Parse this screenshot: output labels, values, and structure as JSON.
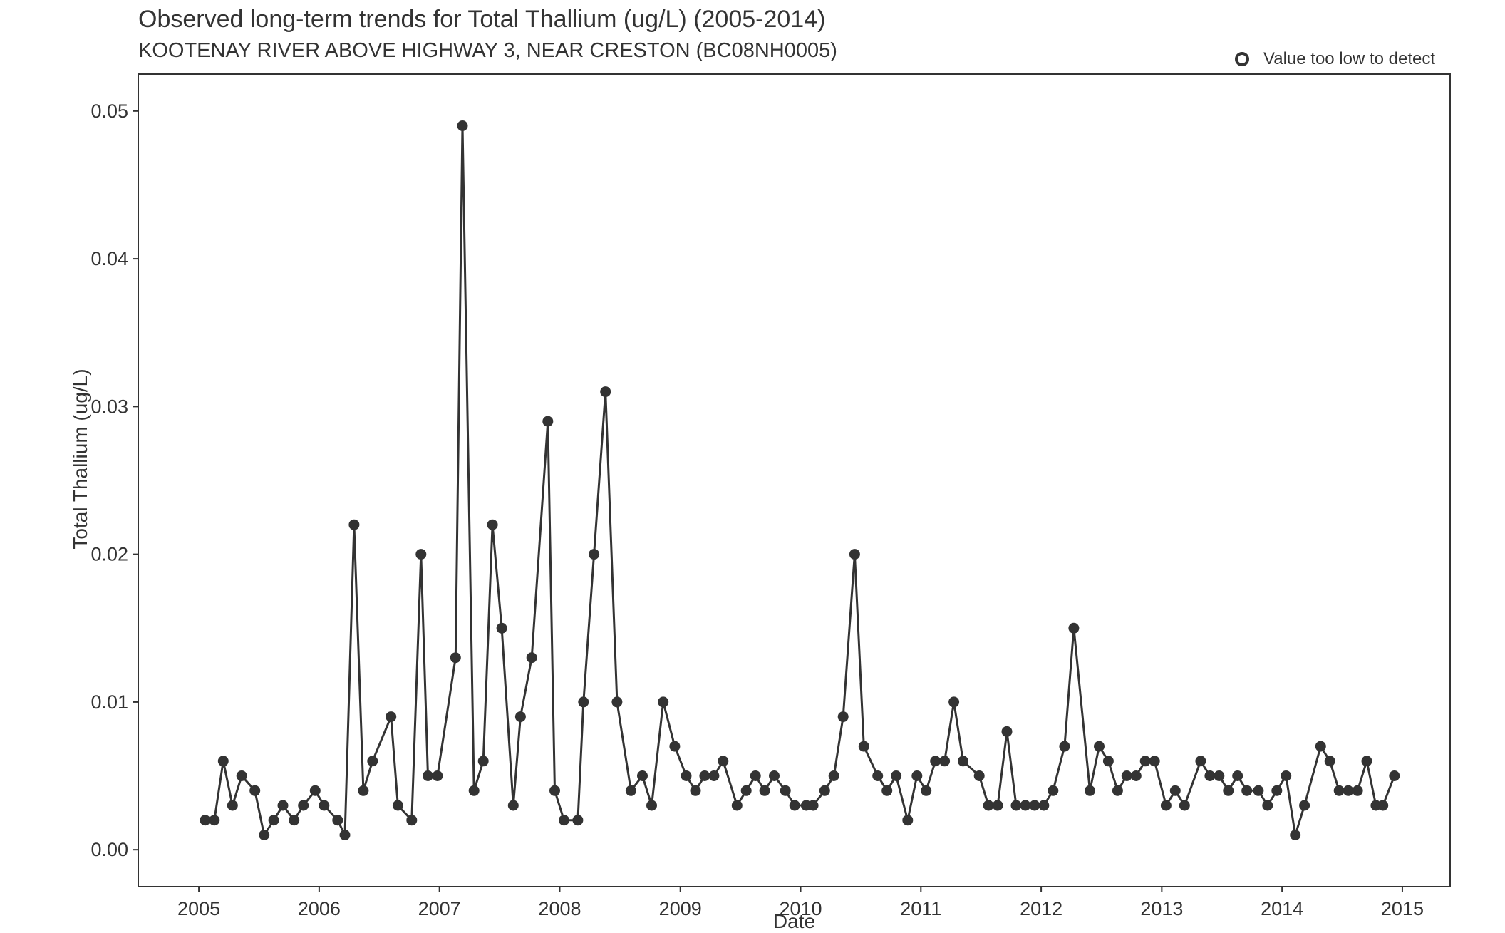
{
  "title": "Observed long-term trends for Total Thallium (ug/L) (2005-2014)",
  "subtitle": "KOOTENAY RIVER ABOVE HIGHWAY 3, NEAR CRESTON (BC08NH0005)",
  "legend": {
    "label": "Value too low to detect",
    "symbol": "open-circle"
  },
  "chart_data": {
    "type": "line",
    "title": "Observed long-term trends for Total Thallium (ug/L) (2005-2014)",
    "subtitle": "KOOTENAY RIVER ABOVE HIGHWAY 3, NEAR CRESTON (BC08NH0005)",
    "xlabel": "Date",
    "ylabel": "Total Thallium (ug/L)",
    "xlim": [
      "2004-07-01",
      "2015-05-26"
    ],
    "ylim": [
      -0.0025,
      0.0525
    ],
    "x_ticks": [
      "2005",
      "2006",
      "2007",
      "2008",
      "2009",
      "2010",
      "2011",
      "2012",
      "2013",
      "2014",
      "2015"
    ],
    "y_ticks": [
      "0.00",
      "0.01",
      "0.02",
      "0.03",
      "0.04",
      "0.05"
    ],
    "grid": false,
    "legend_position": "top-right",
    "colors": {
      "series": "#333333",
      "background": "#ffffff",
      "axis": "#333333"
    },
    "series": [
      {
        "name": "Value too low to detect",
        "marker": "open-circle",
        "points": []
      },
      {
        "marker": "filled-circle",
        "points": [
          [
            "2005-01-20",
            0.002
          ],
          [
            "2005-02-17",
            0.002
          ],
          [
            "2005-03-16",
            0.006
          ],
          [
            "2005-04-13",
            0.003
          ],
          [
            "2005-05-11",
            0.005
          ],
          [
            "2005-06-20",
            0.004
          ],
          [
            "2005-07-18",
            0.001
          ],
          [
            "2005-08-16",
            0.002
          ],
          [
            "2005-09-13",
            0.003
          ],
          [
            "2005-10-17",
            0.002
          ],
          [
            "2005-11-14",
            0.003
          ],
          [
            "2005-12-20",
            0.004
          ],
          [
            "2006-01-16",
            0.003
          ],
          [
            "2006-02-26",
            0.002
          ],
          [
            "2006-03-20",
            0.001
          ],
          [
            "2006-04-17",
            0.022
          ],
          [
            "2006-05-15",
            0.004
          ],
          [
            "2006-06-12",
            0.006
          ],
          [
            "2006-08-07",
            0.009
          ],
          [
            "2006-08-28",
            0.003
          ],
          [
            "2006-10-09",
            0.002
          ],
          [
            "2006-11-06",
            0.02
          ],
          [
            "2006-11-27",
            0.005
          ],
          [
            "2006-12-26",
            0.005
          ],
          [
            "2007-02-19",
            0.013
          ],
          [
            "2007-03-12",
            0.049
          ],
          [
            "2007-04-16",
            0.004
          ],
          [
            "2007-05-14",
            0.006
          ],
          [
            "2007-06-11",
            0.022
          ],
          [
            "2007-07-09",
            0.015
          ],
          [
            "2007-08-13",
            0.003
          ],
          [
            "2007-09-04",
            0.009
          ],
          [
            "2007-10-08",
            0.013
          ],
          [
            "2007-11-26",
            0.029
          ],
          [
            "2007-12-17",
            0.004
          ],
          [
            "2008-01-14",
            0.002
          ],
          [
            "2008-02-25",
            0.002
          ],
          [
            "2008-03-13",
            0.01
          ],
          [
            "2008-04-14",
            0.02
          ],
          [
            "2008-05-19",
            0.031
          ],
          [
            "2008-06-23",
            0.01
          ],
          [
            "2008-08-04",
            0.004
          ],
          [
            "2008-09-08",
            0.005
          ],
          [
            "2008-10-06",
            0.003
          ],
          [
            "2008-11-10",
            0.01
          ],
          [
            "2008-12-15",
            0.007
          ],
          [
            "2009-01-19",
            0.005
          ],
          [
            "2009-02-16",
            0.004
          ],
          [
            "2009-03-16",
            0.005
          ],
          [
            "2009-04-13",
            0.005
          ],
          [
            "2009-05-11",
            0.006
          ],
          [
            "2009-06-22",
            0.003
          ],
          [
            "2009-07-20",
            0.004
          ],
          [
            "2009-08-17",
            0.005
          ],
          [
            "2009-09-14",
            0.004
          ],
          [
            "2009-10-13",
            0.005
          ],
          [
            "2009-11-16",
            0.004
          ],
          [
            "2009-12-14",
            0.003
          ],
          [
            "2010-01-18",
            0.003
          ],
          [
            "2010-02-08",
            0.003
          ],
          [
            "2010-03-15",
            0.004
          ],
          [
            "2010-04-12",
            0.005
          ],
          [
            "2010-05-10",
            0.009
          ],
          [
            "2010-06-14",
            0.02
          ],
          [
            "2010-07-12",
            0.007
          ],
          [
            "2010-08-23",
            0.005
          ],
          [
            "2010-09-20",
            0.004
          ],
          [
            "2010-10-18",
            0.005
          ],
          [
            "2010-11-22",
            0.002
          ],
          [
            "2010-12-20",
            0.005
          ],
          [
            "2011-01-17",
            0.004
          ],
          [
            "2011-02-14",
            0.006
          ],
          [
            "2011-03-14",
            0.006
          ],
          [
            "2011-04-11",
            0.01
          ],
          [
            "2011-05-09",
            0.006
          ],
          [
            "2011-06-27",
            0.005
          ],
          [
            "2011-07-25",
            0.003
          ],
          [
            "2011-08-22",
            0.003
          ],
          [
            "2011-09-19",
            0.008
          ],
          [
            "2011-10-17",
            0.003
          ],
          [
            "2011-11-14",
            0.003
          ],
          [
            "2011-12-12",
            0.003
          ],
          [
            "2012-01-09",
            0.003
          ],
          [
            "2012-02-06",
            0.004
          ],
          [
            "2012-03-12",
            0.007
          ],
          [
            "2012-04-09",
            0.015
          ],
          [
            "2012-05-28",
            0.004
          ],
          [
            "2012-06-25",
            0.007
          ],
          [
            "2012-07-23",
            0.006
          ],
          [
            "2012-08-20",
            0.004
          ],
          [
            "2012-09-17",
            0.005
          ],
          [
            "2012-10-15",
            0.005
          ],
          [
            "2012-11-12",
            0.006
          ],
          [
            "2012-12-10",
            0.006
          ],
          [
            "2013-01-14",
            0.003
          ],
          [
            "2013-02-11",
            0.004
          ],
          [
            "2013-03-11",
            0.003
          ],
          [
            "2013-04-29",
            0.006
          ],
          [
            "2013-05-27",
            0.005
          ],
          [
            "2013-06-24",
            0.005
          ],
          [
            "2013-07-22",
            0.004
          ],
          [
            "2013-08-19",
            0.005
          ],
          [
            "2013-09-16",
            0.004
          ],
          [
            "2013-10-21",
            0.004
          ],
          [
            "2013-11-18",
            0.003
          ],
          [
            "2013-12-16",
            0.004
          ],
          [
            "2014-01-13",
            0.005
          ],
          [
            "2014-02-10",
            0.001
          ],
          [
            "2014-03-10",
            0.003
          ],
          [
            "2014-04-28",
            0.007
          ],
          [
            "2014-05-26",
            0.006
          ],
          [
            "2014-06-23",
            0.004
          ],
          [
            "2014-07-21",
            0.004
          ],
          [
            "2014-08-18",
            0.004
          ],
          [
            "2014-09-15",
            0.006
          ],
          [
            "2014-10-13",
            0.003
          ],
          [
            "2014-11-03",
            0.003
          ],
          [
            "2014-12-08",
            0.005
          ]
        ]
      }
    ]
  }
}
